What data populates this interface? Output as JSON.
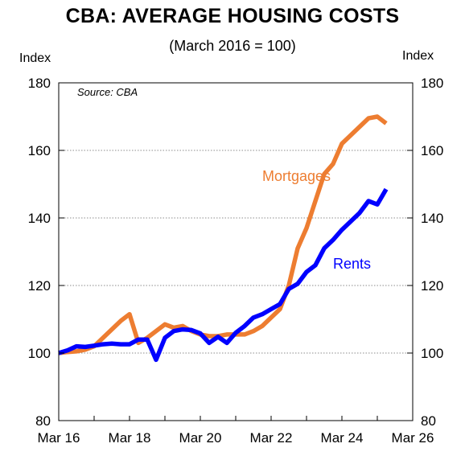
{
  "chart_data": {
    "type": "line",
    "title": "CBA: AVERAGE HOUSING COSTS",
    "subtitle": "(March 2016 = 100)",
    "ylabel_left": "Index",
    "ylabel_right": "Index",
    "source": "Source: CBA",
    "ylim": [
      80,
      180
    ],
    "yticks": [
      80,
      100,
      120,
      140,
      160,
      180
    ],
    "ytick_labels": [
      "80",
      "100",
      "120",
      "140",
      "160",
      "180"
    ],
    "xlim": [
      "2016-03",
      "2026-03"
    ],
    "xticks": [
      "2016-03",
      "2018-03",
      "2020-03",
      "2022-03",
      "2024-03",
      "2026-03"
    ],
    "xtick_labels": [
      "Mar 16",
      "Mar 18",
      "Mar 20",
      "Mar 22",
      "Mar 24",
      "Mar 26"
    ],
    "grid": "horizontal dotted",
    "series": [
      {
        "name": "Mortgages",
        "color": "#ED7D31",
        "points": [
          [
            "2016-03",
            100.0
          ],
          [
            "2016-06",
            100.3
          ],
          [
            "2016-09",
            100.5
          ],
          [
            "2016-12",
            101.0
          ],
          [
            "2017-03",
            102.0
          ],
          [
            "2017-06",
            104.5
          ],
          [
            "2017-09",
            107.0
          ],
          [
            "2017-12",
            109.5
          ],
          [
            "2018-03",
            111.5
          ],
          [
            "2018-06",
            103.0
          ],
          [
            "2018-09",
            104.5
          ],
          [
            "2018-12",
            106.5
          ],
          [
            "2019-03",
            108.5
          ],
          [
            "2019-06",
            107.5
          ],
          [
            "2019-09",
            108.0
          ],
          [
            "2019-12",
            106.5
          ],
          [
            "2020-03",
            105.5
          ],
          [
            "2020-06",
            105.0
          ],
          [
            "2020-09",
            105.0
          ],
          [
            "2020-12",
            105.5
          ],
          [
            "2021-03",
            105.5
          ],
          [
            "2021-06",
            105.5
          ],
          [
            "2021-09",
            106.5
          ],
          [
            "2021-12",
            108.0
          ],
          [
            "2022-03",
            110.5
          ],
          [
            "2022-06",
            113.0
          ],
          [
            "2022-09",
            120.0
          ],
          [
            "2022-12",
            131.0
          ],
          [
            "2023-03",
            137.0
          ],
          [
            "2023-06",
            145.0
          ],
          [
            "2023-09",
            153.0
          ],
          [
            "2023-12",
            156.0
          ],
          [
            "2024-03",
            162.0
          ],
          [
            "2024-06",
            164.5
          ],
          [
            "2024-09",
            167.0
          ],
          [
            "2024-12",
            169.5
          ],
          [
            "2025-03",
            170.0
          ],
          [
            "2025-06",
            168.0
          ]
        ]
      },
      {
        "name": "Rents",
        "color": "#0000FF",
        "points": [
          [
            "2016-03",
            100.0
          ],
          [
            "2016-06",
            100.8
          ],
          [
            "2016-09",
            102.0
          ],
          [
            "2016-12",
            101.8
          ],
          [
            "2017-03",
            102.2
          ],
          [
            "2017-06",
            102.6
          ],
          [
            "2017-09",
            102.8
          ],
          [
            "2017-12",
            102.6
          ],
          [
            "2018-03",
            102.6
          ],
          [
            "2018-06",
            104.0
          ],
          [
            "2018-09",
            104.0
          ],
          [
            "2018-12",
            98.0
          ],
          [
            "2019-03",
            104.5
          ],
          [
            "2019-06",
            106.5
          ],
          [
            "2019-09",
            107.0
          ],
          [
            "2019-12",
            106.8
          ],
          [
            "2020-03",
            105.8
          ],
          [
            "2020-06",
            103.0
          ],
          [
            "2020-09",
            104.8
          ],
          [
            "2020-12",
            103.0
          ],
          [
            "2021-03",
            106.0
          ],
          [
            "2021-06",
            108.0
          ],
          [
            "2021-09",
            110.5
          ],
          [
            "2021-12",
            111.5
          ],
          [
            "2022-03",
            113.0
          ],
          [
            "2022-06",
            114.5
          ],
          [
            "2022-09",
            119.0
          ],
          [
            "2022-12",
            120.5
          ],
          [
            "2023-03",
            124.0
          ],
          [
            "2023-06",
            126.0
          ],
          [
            "2023-09",
            131.0
          ],
          [
            "2023-12",
            133.5
          ],
          [
            "2024-03",
            136.5
          ],
          [
            "2024-06",
            139.0
          ],
          [
            "2024-09",
            141.5
          ],
          [
            "2024-12",
            145.0
          ],
          [
            "2025-03",
            144.0
          ],
          [
            "2025-06",
            148.5
          ]
        ]
      }
    ]
  }
}
